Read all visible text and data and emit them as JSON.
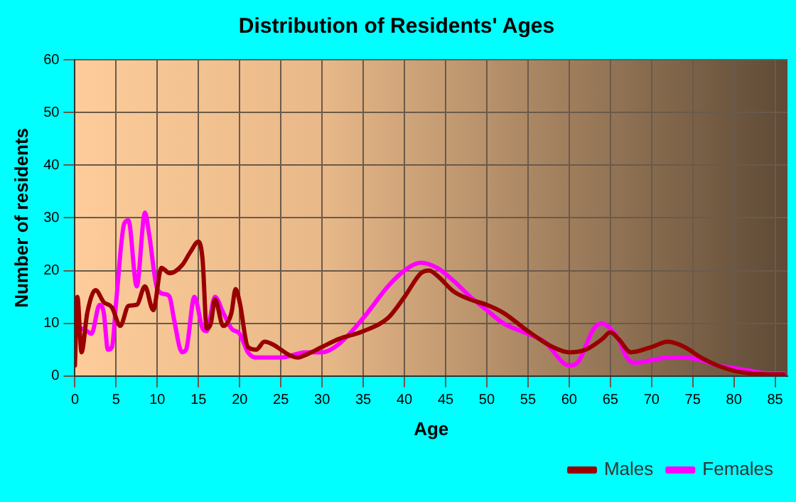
{
  "chart_data": {
    "type": "line",
    "title": "Distribution of Residents' Ages",
    "xlabel": "Age",
    "ylabel": "Number of residents",
    "xlim": [
      0,
      86.5
    ],
    "xticks": [
      0,
      5,
      10,
      15,
      20,
      25,
      30,
      35,
      40,
      45,
      50,
      55,
      60,
      65,
      70,
      75,
      80,
      85
    ],
    "ylim": [
      0,
      60
    ],
    "yticks": [
      0,
      10,
      20,
      30,
      40,
      50,
      60
    ],
    "grid": true,
    "legend": "bottom right",
    "marker": "none",
    "line_style": "solid",
    "series": [
      {
        "name": "Males",
        "color": "#990000",
        "x": [
          0,
          0.3,
          0.8,
          1.5,
          2.5,
          3.5,
          4.5,
          5.5,
          6.5,
          7.5,
          8.5,
          9.5,
          10.5,
          11.5,
          13,
          14,
          15,
          15.5,
          16,
          16.5,
          17,
          18,
          19,
          19.5,
          20,
          21,
          22,
          23,
          24,
          25,
          26,
          27,
          28,
          30,
          32,
          35,
          38,
          40,
          42,
          43,
          44,
          46,
          48,
          50,
          52,
          55,
          58,
          60,
          62,
          64,
          65,
          66,
          67.5,
          70,
          72,
          74,
          76,
          78,
          80,
          82,
          84,
          86
        ],
        "values": [
          2,
          15,
          4.5,
          12,
          16.3,
          14,
          13,
          9.5,
          13.3,
          13.5,
          17,
          12.5,
          20.5,
          19.5,
          21,
          23.5,
          25.5,
          22,
          9,
          10,
          14.5,
          9.5,
          12,
          16.5,
          14,
          5.5,
          5,
          6.5,
          6,
          5,
          4,
          3.5,
          4,
          5.5,
          7,
          8.5,
          11,
          15,
          19.5,
          20,
          19,
          16,
          14.5,
          13.5,
          12,
          8.5,
          5.5,
          4.5,
          5,
          7,
          8.3,
          7,
          4.5,
          5.5,
          6.5,
          5.5,
          3.5,
          2,
          1,
          0.5,
          0.3,
          0.3
        ]
      },
      {
        "name": "Females",
        "color": "#ff00ff",
        "x": [
          0.8,
          1.5,
          2,
          3,
          3.5,
          4,
          4.5,
          5,
          6,
          6.5,
          7.5,
          8.5,
          9,
          10,
          11,
          11.5,
          12,
          13,
          13.5,
          14.5,
          15.5,
          16,
          17,
          18,
          19,
          20,
          21,
          22,
          25,
          28,
          30,
          32,
          35,
          38,
          40,
          42,
          44,
          46,
          48,
          50,
          52,
          55,
          57,
          60,
          61,
          63,
          64,
          65,
          66,
          67,
          68,
          70,
          72,
          74,
          76,
          78,
          80,
          82,
          84,
          86
        ],
        "values": [
          9,
          8.5,
          8,
          13.5,
          12,
          5,
          5.5,
          14,
          29,
          29.5,
          17,
          31,
          27,
          16.5,
          15.5,
          15,
          11,
          4.5,
          5,
          15,
          9,
          8.5,
          15,
          12,
          9,
          8,
          4.5,
          3.5,
          3.5,
          4.5,
          4.5,
          6,
          11,
          17,
          20,
          21.5,
          20.5,
          18,
          15,
          12.5,
          10,
          8,
          6.5,
          2,
          2.5,
          9,
          10,
          9,
          7,
          3.5,
          2.5,
          3,
          3.5,
          3.5,
          3,
          2,
          1.5,
          1,
          0.5,
          0.5
        ]
      }
    ]
  }
}
